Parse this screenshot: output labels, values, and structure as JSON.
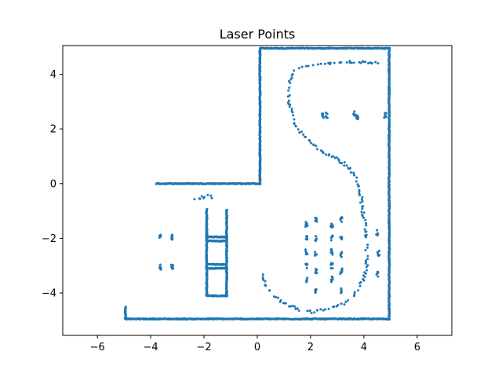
{
  "chart_data": {
    "type": "scatter",
    "title": "Laser Points",
    "xlabel": "",
    "ylabel": "",
    "xlim": [
      -7.3,
      7.3
    ],
    "ylim": [
      -5.55,
      5.05
    ],
    "xticks": [
      -6,
      -4,
      -2,
      0,
      2,
      4,
      6
    ],
    "yticks": [
      -4,
      -2,
      0,
      2,
      4
    ],
    "grid": false,
    "color": "#1f77b4",
    "segments": [
      {
        "from": [
          0.1,
          4.95
        ],
        "to": [
          4.95,
          4.95
        ]
      },
      {
        "from": [
          0.1,
          4.95
        ],
        "to": [
          0.1,
          0.0
        ]
      },
      {
        "from": [
          -3.8,
          0.0
        ],
        "to": [
          0.1,
          0.0
        ]
      },
      {
        "from": [
          4.95,
          4.95
        ],
        "to": [
          4.95,
          -4.95
        ]
      },
      {
        "from": [
          -4.95,
          -4.95
        ],
        "to": [
          4.95,
          -4.95
        ]
      },
      {
        "from": [
          -4.95,
          -4.95
        ],
        "to": [
          -4.95,
          -4.5
        ]
      },
      {
        "from": [
          -1.9,
          -0.95
        ],
        "to": [
          -1.9,
          -4.1
        ]
      },
      {
        "from": [
          -1.15,
          -0.95
        ],
        "to": [
          -1.15,
          -4.1
        ]
      },
      {
        "from": [
          -1.9,
          -1.95
        ],
        "to": [
          -1.15,
          -1.95
        ]
      },
      {
        "from": [
          -1.9,
          -2.1
        ],
        "to": [
          -1.15,
          -2.1
        ]
      },
      {
        "from": [
          -1.9,
          -2.95
        ],
        "to": [
          -1.15,
          -2.95
        ]
      },
      {
        "from": [
          -1.9,
          -3.1
        ],
        "to": [
          -1.15,
          -3.1
        ]
      },
      {
        "from": [
          -1.9,
          -4.1
        ],
        "to": [
          -1.15,
          -4.1
        ]
      }
    ],
    "curves": [
      {
        "points": [
          [
            4.5,
            4.4
          ],
          [
            3.5,
            4.45
          ],
          [
            2.5,
            4.35
          ],
          [
            1.5,
            4.2
          ],
          [
            1.25,
            3.9
          ],
          [
            1.15,
            3.5
          ],
          [
            1.2,
            3.0
          ],
          [
            1.3,
            2.5
          ],
          [
            1.5,
            2.0
          ],
          [
            1.9,
            1.65
          ],
          [
            2.4,
            1.2
          ],
          [
            2.9,
            0.95
          ],
          [
            3.3,
            0.7
          ],
          [
            3.6,
            0.4
          ],
          [
            3.8,
            0.0
          ],
          [
            3.9,
            -0.5
          ],
          [
            3.95,
            -1.0
          ],
          [
            4.05,
            -1.5
          ],
          [
            4.1,
            -2.0
          ],
          [
            4.1,
            -2.5
          ],
          [
            4.1,
            -3.0
          ],
          [
            4.0,
            -3.5
          ],
          [
            3.7,
            -4.0
          ],
          [
            3.3,
            -4.4
          ],
          [
            2.6,
            -4.6
          ],
          [
            2.0,
            -4.7
          ],
          [
            1.4,
            -4.55
          ],
          [
            0.9,
            -4.3
          ],
          [
            0.5,
            -4.0
          ],
          [
            0.25,
            -3.6
          ],
          [
            0.15,
            -3.3
          ]
        ]
      },
      {
        "points": [
          [
            -1.6,
            -0.5
          ],
          [
            -1.9,
            -0.45
          ],
          [
            -2.2,
            -0.55
          ],
          [
            -2.4,
            -0.65
          ]
        ]
      }
    ],
    "clusters": [
      {
        "x": -3.65,
        "y": -1.95
      },
      {
        "x": -3.2,
        "y": -1.95
      },
      {
        "x": -3.65,
        "y": -3.05
      },
      {
        "x": -3.2,
        "y": -3.05
      },
      {
        "x": 2.45,
        "y": 2.5
      },
      {
        "x": 2.6,
        "y": 2.5
      },
      {
        "x": 3.65,
        "y": 2.55
      },
      {
        "x": 3.75,
        "y": 2.45
      },
      {
        "x": 4.8,
        "y": 2.5
      },
      {
        "x": 1.85,
        "y": -1.5
      },
      {
        "x": 1.85,
        "y": -2.0
      },
      {
        "x": 1.85,
        "y": -2.5
      },
      {
        "x": 1.85,
        "y": -3.0
      },
      {
        "x": 1.85,
        "y": -3.5
      },
      {
        "x": 2.2,
        "y": -1.3
      },
      {
        "x": 2.2,
        "y": -2.0
      },
      {
        "x": 2.2,
        "y": -2.6
      },
      {
        "x": 2.2,
        "y": -3.2
      },
      {
        "x": 2.2,
        "y": -3.9
      },
      {
        "x": 2.8,
        "y": -1.5
      },
      {
        "x": 2.8,
        "y": -2.0
      },
      {
        "x": 2.8,
        "y": -2.5
      },
      {
        "x": 2.8,
        "y": -3.0
      },
      {
        "x": 2.8,
        "y": -3.5
      },
      {
        "x": 3.15,
        "y": -1.3
      },
      {
        "x": 3.15,
        "y": -2.0
      },
      {
        "x": 3.15,
        "y": -2.6
      },
      {
        "x": 3.15,
        "y": -3.2
      },
      {
        "x": 3.15,
        "y": -3.9
      },
      {
        "x": 4.5,
        "y": -1.8
      },
      {
        "x": 4.55,
        "y": -2.55
      },
      {
        "x": 4.5,
        "y": -3.3
      }
    ]
  }
}
